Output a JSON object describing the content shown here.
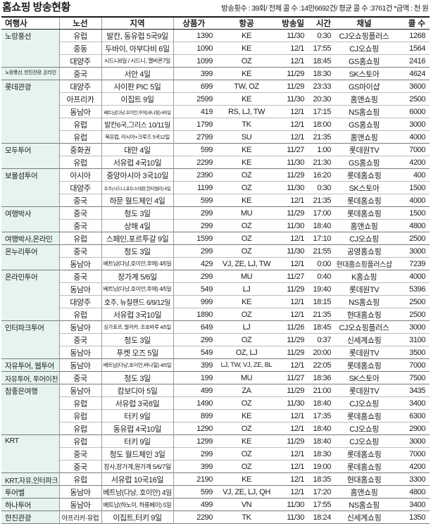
{
  "title": "홈쇼핑 방송현황",
  "note": "방송횟수 : 39회/ 전체 콜 수 :14만6692건/ 평균 콜 수 :3761건 *금액 : 천 원",
  "colors": {
    "agency_bg": "#e6f4f1",
    "group_line": "#7a7a7a",
    "row_line": "#bdbdbd",
    "col_line": "#9a9a9a",
    "header_line": "#1a1a1a"
  },
  "table": {
    "headers": [
      "여행사",
      "노선",
      "지역",
      "상품가",
      "항공",
      "방송일",
      "시간",
      "채널",
      "콜 수"
    ],
    "groups": [
      {
        "agency": "노랑풍선",
        "rows": [
          [
            "유럽",
            "발칸, 동유럽 5국9일",
            "1390",
            "KE",
            "11/30",
            "0:30",
            "CJ오쇼핑플러스",
            "1268"
          ],
          [
            "중동",
            "두바이, 아부다비 6일",
            "1090",
            "KE",
            "12/1",
            "17:55",
            "CJ오쇼핑",
            "1564"
          ],
          [
            "대양주",
            "시드니6일 / 시드니, 멜버른7일",
            "1099",
            "OZ",
            "12/1",
            "18:45",
            "GS홈쇼핑",
            "2416"
          ]
        ]
      },
      {
        "agency": "노랑풍선, 한진관광, 온라인",
        "rows": [
          [
            "중국",
            "서안 4일",
            "399",
            "KE",
            "11/29",
            "18:30",
            "SK스토아",
            "4624"
          ]
        ]
      },
      {
        "agency": "롯데관광",
        "rows": [
          [
            "대양주",
            "사이판 PIC 5일",
            "699",
            "TW, OZ",
            "11/29",
            "23:33",
            "GS마이샵",
            "3600"
          ],
          [
            "아프리카",
            "이집트 9일",
            "2599",
            "KE",
            "11/30",
            "20:30",
            "홈앤쇼핑",
            "2500"
          ],
          [
            "동남아",
            "베트남(다낭,호이안,후에,바나힐) 4/5일",
            "419",
            "RS, LJ, TW",
            "12/1",
            "17:15",
            "NS홈쇼핑",
            "6000"
          ],
          [
            "유럽",
            "발칸6국,그리스 10/11일",
            "1799",
            "TK",
            "12/1",
            "18:00",
            "GS홈쇼핑",
            "3000"
          ],
          [
            "유럽",
            "북유럽, 러시아+크루즈 5국12일",
            "2799",
            "SU",
            "12/1",
            "21:35",
            "홈앤쇼핑",
            "4000"
          ]
        ]
      },
      {
        "agency": "모두투어",
        "rows": [
          [
            "중화권",
            "대만 4일",
            "599",
            "KE",
            "11/27",
            "1:00",
            "롯데원TV",
            "7000"
          ],
          [
            "유럽",
            "서유럽 4국10일",
            "2299",
            "KE",
            "11/30",
            "21:30",
            "GS홈쇼핑",
            "4200"
          ]
        ]
      },
      {
        "agency": "보물섬투어",
        "rows": [
          [
            "아시아",
            "중앙아시아 3국10일",
            "2390",
            "OZ",
            "11/29",
            "16:20",
            "롯데홈쇼핑",
            "400"
          ],
          [
            "대양주",
            "호주(시드니,포트스테판,헌터밸리) 6일",
            "1199",
            "OZ",
            "11/30",
            "0:30",
            "SK스토아",
            "1500"
          ],
          [
            "중국",
            "하문 월드체인 4일",
            "599",
            "KE",
            "12/1",
            "21:35",
            "롯데홈쇼핑",
            "4000"
          ]
        ]
      },
      {
        "agency": "여행박사",
        "rows": [
          [
            "중국",
            "청도 3일",
            "299",
            "MU",
            "11/29",
            "17:00",
            "롯데홈쇼핑",
            "1500"
          ],
          [
            "중국",
            "상해 4일",
            "299",
            "OZ",
            "11/30",
            "18:40",
            "홈앤쇼핑",
            "4800"
          ]
        ]
      },
      {
        "agency": "여행박사,온라인",
        "rows": [
          [
            "유럽",
            "스페인,포르투갈 9일",
            "1599",
            "OZ",
            "12/1",
            "17:10",
            "CJ오쇼핑",
            "2500"
          ]
        ]
      },
      {
        "agency": "온누리투어",
        "rows": [
          [
            "중국",
            "청도 3일",
            "299",
            "OZ",
            "11/30",
            "21:55",
            "공영홈쇼핑",
            "3000"
          ],
          [
            "동남아",
            "베트남(다낭,호이안,후에) 4/5일",
            "429",
            "VJ, ZE, LJ, TW",
            "12/1",
            "0:00",
            "현대홈쇼핑플러스샵",
            "7239"
          ]
        ]
      },
      {
        "agency": "온라인투어",
        "rows": [
          [
            "중국",
            "장가계 5/6일",
            "299",
            "MU",
            "11/27",
            "0:40",
            "K홈쇼핑",
            "4000"
          ],
          [
            "동남아",
            "베트남(다낭,호이안,후에) 4/5일",
            "549",
            "LJ",
            "11/29",
            "19:40",
            "롯데원TV",
            "5396"
          ],
          [
            "대양주",
            "호주, 뉴질랜드 6/9/12일",
            "999",
            "KE",
            "12/1",
            "18:15",
            "NS홈쇼핑",
            "2500"
          ],
          [
            "유럽",
            "서유럽 3국10일",
            "1890",
            "OZ",
            "12/1",
            "21:35",
            "현대홈쇼핑",
            "2500"
          ]
        ]
      },
      {
        "agency": "인터파크투어",
        "rows": [
          [
            "동남아",
            "싱가포르, 말라카, 조호바루 4/5일",
            "649",
            "LJ",
            "11/26",
            "18:45",
            "CJ오쇼핑플러스",
            "3000"
          ],
          [
            "중국",
            "청도 3일",
            "299",
            "OZ",
            "11/29",
            "0:37",
            "신세계쇼핑",
            "3100"
          ],
          [
            "동남아",
            "푸켓 오즈 5일",
            "549",
            "OZ, LJ",
            "11/29",
            "20:00",
            "롯데원TV",
            "3500"
          ]
        ]
      },
      {
        "agency": "자유투어, 웹투어",
        "rows": [
          [
            "동남아",
            "베트남(다낭,호이안,바나힐) 4/5일",
            "399",
            "LJ, TW, VJ, ZE, BL",
            "12/1",
            "22:05",
            "롯데홈쇼핑",
            "7000"
          ]
        ]
      },
      {
        "agency": "자유투어, 투어이천",
        "rows": [
          [
            "중국",
            "청도 3일",
            "199",
            "MU",
            "11/27",
            "18:36",
            "SK스토아",
            "7500"
          ]
        ]
      },
      {
        "agency": "참좋은여행",
        "rows": [
          [
            "동남아",
            "캄보디아 5일",
            "499",
            "ZA",
            "11/29",
            "21:00",
            "롯데원TV",
            "3435"
          ],
          [
            "유럽",
            "서유럽 3국8일",
            "1490",
            "OZ",
            "11/30",
            "18:40",
            "CJ오쇼핑",
            "3400"
          ],
          [
            "유럽",
            "터키 9일",
            "899",
            "KE",
            "12/1",
            "17:35",
            "롯데홈쇼핑",
            "6300"
          ],
          [
            "유럽",
            "동유럽 4국10일",
            "1290",
            "OZ",
            "12/1",
            "18:40",
            "CJ오쇼핑",
            "2900"
          ]
        ]
      },
      {
        "agency": "KRT",
        "rows": [
          [
            "유럽",
            "터키 9일",
            "1299",
            "KE",
            "11/29",
            "18:40",
            "CJ오쇼핑",
            "3000"
          ],
          [
            "중국",
            "청도 월드체인 3일",
            "299",
            "OZ",
            "12/1",
            "18:30",
            "롯데홈쇼핑",
            "7000"
          ],
          [
            "중국",
            "장사,장가계,원가계 5/6/7일",
            "399",
            "OZ",
            "12/1",
            "19:00",
            "롯데홈쇼핑",
            "4200"
          ]
        ]
      },
      {
        "agency": "KRT,자유,인터파크",
        "rows": [
          [
            "유럽",
            "서유럽 10국16일",
            "2190",
            "KE",
            "12/1",
            "18:35",
            "현대홈쇼핑",
            "3300"
          ]
        ]
      },
      {
        "agency": "투어벨",
        "rows": [
          [
            "동남아",
            "베트남(다낭, 호이안) 4일",
            "599",
            "VJ, ZE, LJ, QH",
            "12/1",
            "17:20",
            "홈앤쇼핑",
            "4800"
          ]
        ]
      },
      {
        "agency": "하나투어",
        "rows": [
          [
            "동남아",
            "베트남(하노이, 하롱베이) 5일",
            "499",
            "VN",
            "11/30",
            "17:55",
            "NS홈쇼핑",
            "3400"
          ]
        ]
      },
      {
        "agency": "한진관광",
        "rows": [
          [
            "아프리카·유럽",
            "이집트,터키 9일",
            "2290",
            "TK",
            "11/30",
            "18:24",
            "신세계쇼핑",
            "1350"
          ]
        ]
      }
    ]
  }
}
